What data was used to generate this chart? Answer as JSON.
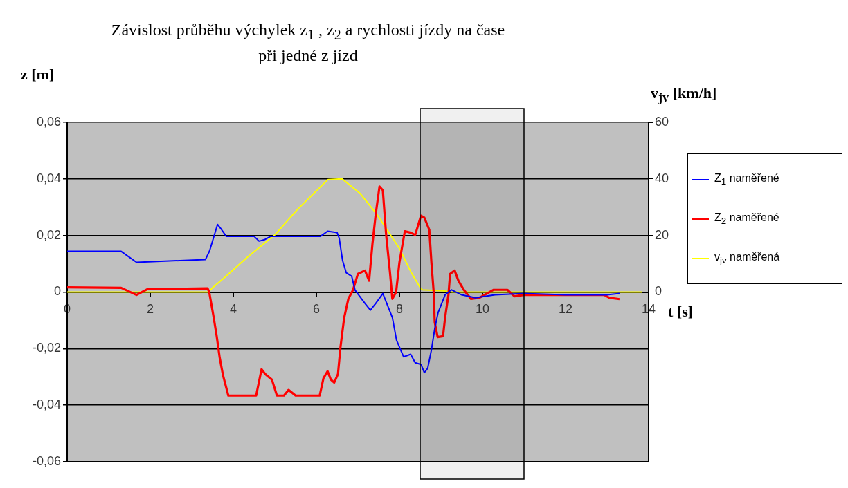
{
  "chart_data": {
    "type": "line",
    "title": "Závislost průběhu výchylek z$_{1}$ , z$_{2}$ a rychlosti jízdy na čase při jedné z jízd",
    "xlabel": "t [s]",
    "ylabel": "z [m]",
    "y2label": "v$_{jv}$ [km/h]",
    "xlim": [
      0,
      14
    ],
    "xticks": [
      0,
      2,
      4,
      6,
      8,
      10,
      12,
      14
    ],
    "ylim": [
      -0.06,
      0.06
    ],
    "yticks": [
      {
        "value": -0.06,
        "label": "-0,06"
      },
      {
        "value": -0.04,
        "label": "-0,04"
      },
      {
        "value": -0.02,
        "label": "-0,02"
      },
      0,
      {
        "value": 0.02,
        "label": "0,02"
      },
      {
        "value": 0.04,
        "label": "0,04"
      },
      {
        "value": 0.06,
        "label": "0,06"
      }
    ],
    "y2lim": [
      -60,
      60
    ],
    "y2ticks": [
      0,
      20,
      40,
      60
    ],
    "grid": "y",
    "legend": "right",
    "marker": "none",
    "line_style": "solid",
    "bands": [
      {
        "axis": "x",
        "from": 8.5,
        "to": 11,
        "color": "#000000"
      }
    ],
    "series": [
      {
        "name": "Z$_{1}$ naměřené",
        "color": "#0000ff",
        "x": [
          0,
          1.3,
          1.67,
          3.33,
          3.43,
          3.52,
          3.62,
          3.72,
          3.83,
          4.5,
          4.62,
          4.75,
          4.9,
          6.1,
          6.27,
          6.5,
          6.55,
          6.63,
          6.72,
          6.85,
          6.93,
          7.17,
          7.3,
          7.43,
          7.6,
          7.83,
          7.93,
          8.1,
          8.27,
          8.38,
          8.52,
          8.6,
          8.68,
          8.77,
          8.85,
          8.93,
          9.1,
          9.25,
          9.5,
          9.83,
          10.3,
          11,
          12,
          13,
          13.3
        ],
        "values": [
          0.0144,
          0.0144,
          0.0105,
          0.0115,
          0.0146,
          0.019,
          0.0239,
          0.022,
          0.0197,
          0.0197,
          0.018,
          0.0185,
          0.0197,
          0.0197,
          0.0215,
          0.021,
          0.019,
          0.0112,
          0.0068,
          0.0056,
          0.0007,
          -0.004,
          -0.0064,
          -0.004,
          -0.0005,
          -0.009,
          -0.017,
          -0.0229,
          -0.022,
          -0.025,
          -0.0256,
          -0.0285,
          -0.027,
          -0.0205,
          -0.013,
          -0.0073,
          -0.001,
          0.0008,
          -0.001,
          -0.002,
          -0.001,
          -0.0005,
          -0.001,
          -0.001,
          -0.0005
        ]
      },
      {
        "name": "Z$_{2}$ naměřené",
        "color": "#ff0000",
        "x": [
          0,
          1.3,
          1.67,
          1.93,
          3.38,
          3.42,
          3.52,
          3.6,
          3.67,
          3.75,
          3.88,
          4.55,
          4.68,
          4.77,
          4.93,
          5.05,
          5.22,
          5.33,
          5.5,
          6.08,
          6.17,
          6.27,
          6.35,
          6.43,
          6.52,
          6.58,
          6.67,
          6.77,
          6.88,
          7,
          7.17,
          7.27,
          7.35,
          7.43,
          7.52,
          7.6,
          7.68,
          7.77,
          7.83,
          7.92,
          8,
          8.13,
          8.27,
          8.38,
          8.52,
          8.6,
          8.72,
          8.77,
          8.83,
          8.85,
          8.92,
          9.05,
          9.1,
          9.18,
          9.22,
          9.33,
          9.42,
          9.55,
          9.72,
          9.93,
          10.27,
          10.6,
          10.77,
          11,
          12,
          12.93,
          13.05,
          13.3
        ],
        "values": [
          0.0017,
          0.0015,
          -0.001,
          0.001,
          0.0013,
          0,
          -0.0083,
          -0.0156,
          -0.023,
          -0.0293,
          -0.0366,
          -0.0366,
          -0.0273,
          -0.029,
          -0.031,
          -0.0366,
          -0.0366,
          -0.0346,
          -0.0366,
          -0.0366,
          -0.0305,
          -0.028,
          -0.031,
          -0.032,
          -0.029,
          -0.0195,
          -0.009,
          -0.0024,
          0.0007,
          0.0064,
          0.0076,
          0.004,
          0.017,
          0.0276,
          0.0373,
          0.036,
          0.0202,
          0.0073,
          -0.0024,
          0,
          0.0105,
          0.0215,
          0.021,
          0.0202,
          0.027,
          0.0263,
          0.022,
          0.0105,
          -0.001,
          -0.0107,
          -0.0159,
          -0.0156,
          -0.009,
          -0.001,
          0.0064,
          0.0076,
          0.004,
          0.0008,
          -0.0024,
          -0.002,
          0.0008,
          0.0008,
          -0.0015,
          -0.001,
          -0.001,
          -0.001,
          -0.002,
          -0.0025
        ]
      },
      {
        "name": "v$_{jv}$ naměřená",
        "color": "#ffff00",
        "axis": "y2",
        "x": [
          0,
          3.4,
          3.5,
          3.77,
          4.33,
          5,
          5.55,
          6.28,
          6.62,
          7.05,
          7.45,
          8,
          8.27,
          8.5,
          8.55,
          9.05,
          9.27,
          13.85
        ],
        "values": [
          0,
          0,
          1.5,
          4.9,
          12.2,
          20.2,
          29.3,
          39.8,
          40,
          34.9,
          27.6,
          15.4,
          7.3,
          1.5,
          0.8,
          0.4,
          0,
          0
        ]
      }
    ]
  }
}
